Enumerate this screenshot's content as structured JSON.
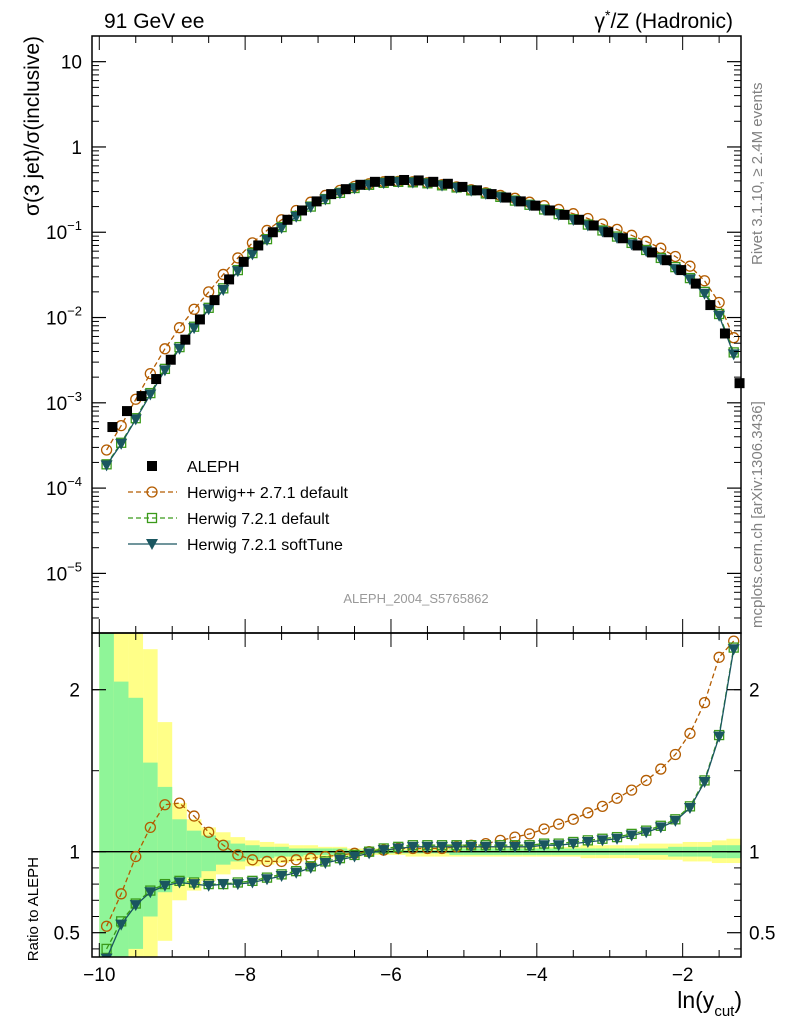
{
  "header": {
    "left": "91 GeV ee",
    "right_base": "γ",
    "right_sup": "*",
    "right_rest": "/Z (Hadronic)"
  },
  "side": {
    "rivet": "Rivet 3.1.10, ≥ 2.4M events",
    "mcplots": "mcplots.cern.ch [arXiv:1306.3436]"
  },
  "analysis_label": "ALEPH_2004_S5765862",
  "ylabel_main": "σ(3 jet)/σ(inclusive)",
  "ylabel_ratio": "Ratio to ALEPH",
  "xlabel_base": "ln(y",
  "xlabel_sub": "cut",
  "xlabel_close": ")",
  "main_ticks": [
    {
      "v": -5,
      "mant": "10",
      "exp": "−5"
    },
    {
      "v": -4,
      "mant": "10",
      "exp": "−4"
    },
    {
      "v": -3,
      "mant": "10",
      "exp": "−3"
    },
    {
      "v": -2,
      "mant": "10",
      "exp": "−2"
    },
    {
      "v": -1,
      "mant": "10",
      "exp": "−1"
    },
    {
      "v": 0,
      "mant": "1",
      "exp": ""
    },
    {
      "v": 1,
      "mant": "10",
      "exp": ""
    }
  ],
  "ratio_ticks": [
    {
      "v": 0.5,
      "label": "0.5"
    },
    {
      "v": 1,
      "label": "1"
    },
    {
      "v": 2,
      "label": "2"
    }
  ],
  "x_ticks": [
    {
      "v": -10,
      "label": "−10"
    },
    {
      "v": -8,
      "label": "−8"
    },
    {
      "v": -6,
      "label": "−6"
    },
    {
      "v": -4,
      "label": "−4"
    },
    {
      "v": -2,
      "label": "−2"
    }
  ],
  "chart_data": {
    "type": "line",
    "xlim": [
      -10.1,
      -1.2
    ],
    "ylim_main": [
      2e-06,
      20
    ],
    "yscale_main": "log",
    "ylim_ratio": [
      0.35,
      2.35
    ],
    "legend_position": "lower-left",
    "colors": {
      "data": "#000000",
      "herwigpp": "#b35c00",
      "h721": "#3a9a1a",
      "soft": "#1a5660",
      "band_inner": "#8ff598",
      "band_outer": "#ffff88"
    },
    "x": [
      -9.9,
      -9.7,
      -9.5,
      -9.3,
      -9.1,
      -8.9,
      -8.7,
      -8.5,
      -8.3,
      -8.1,
      -7.9,
      -7.7,
      -7.5,
      -7.3,
      -7.1,
      -6.9,
      -6.7,
      -6.5,
      -6.3,
      -6.1,
      -5.9,
      -5.7,
      -5.5,
      -5.3,
      -5.1,
      -4.9,
      -4.7,
      -4.5,
      -4.3,
      -4.1,
      -3.9,
      -3.7,
      -3.5,
      -3.3,
      -3.1,
      -2.9,
      -2.7,
      -2.5,
      -2.3,
      -2.1,
      -1.9,
      -1.7,
      -1.5,
      -1.3
    ],
    "series": [
      {
        "name": "ALEPH",
        "values": [
          0.00052,
          0.0008,
          0.0012,
          0.0019,
          0.0032,
          0.0055,
          0.0095,
          0.016,
          0.028,
          0.045,
          0.07,
          0.1,
          0.14,
          0.18,
          0.23,
          0.28,
          0.32,
          0.36,
          0.39,
          0.4,
          0.41,
          0.405,
          0.39,
          0.37,
          0.34,
          0.31,
          0.28,
          0.255,
          0.23,
          0.205,
          0.18,
          0.16,
          0.14,
          0.12,
          0.1,
          0.085,
          0.07,
          0.058,
          0.047,
          0.036,
          0.025,
          0.014,
          0.0065,
          0.0017
        ]
      },
      {
        "name": "Herwig++ 2.7.1 default",
        "values": [
          0.00028,
          0.00054,
          0.0011,
          0.0022,
          0.0043,
          0.0076,
          0.0125,
          0.02,
          0.032,
          0.05,
          0.075,
          0.105,
          0.14,
          0.18,
          0.225,
          0.27,
          0.31,
          0.345,
          0.37,
          0.39,
          0.395,
          0.39,
          0.38,
          0.36,
          0.34,
          0.315,
          0.29,
          0.27,
          0.25,
          0.225,
          0.205,
          0.185,
          0.165,
          0.145,
          0.125,
          0.108,
          0.092,
          0.078,
          0.065,
          0.052,
          0.04,
          0.027,
          0.015,
          0.0058
        ]
      },
      {
        "name": "Herwig 7.2.1 default",
        "values": [
          0.00019,
          0.00034,
          0.00066,
          0.0013,
          0.0025,
          0.0045,
          0.0078,
          0.013,
          0.022,
          0.036,
          0.057,
          0.083,
          0.115,
          0.155,
          0.2,
          0.245,
          0.29,
          0.33,
          0.36,
          0.38,
          0.39,
          0.385,
          0.375,
          0.355,
          0.335,
          0.31,
          0.285,
          0.26,
          0.235,
          0.21,
          0.185,
          0.163,
          0.142,
          0.123,
          0.105,
          0.089,
          0.075,
          0.062,
          0.05,
          0.039,
          0.029,
          0.02,
          0.011,
          0.0039
        ]
      },
      {
        "name": "Herwig 7.2.1 softTune",
        "values": [
          0.000185,
          0.00033,
          0.00064,
          0.00125,
          0.0024,
          0.0043,
          0.0075,
          0.0125,
          0.021,
          0.035,
          0.055,
          0.081,
          0.112,
          0.152,
          0.197,
          0.242,
          0.287,
          0.327,
          0.357,
          0.377,
          0.387,
          0.382,
          0.372,
          0.352,
          0.332,
          0.307,
          0.282,
          0.257,
          0.232,
          0.207,
          0.182,
          0.16,
          0.139,
          0.12,
          0.102,
          0.086,
          0.072,
          0.06,
          0.048,
          0.037,
          0.028,
          0.019,
          0.0105,
          0.0037
        ]
      }
    ],
    "ratio": {
      "herwigpp": [
        0.54,
        0.74,
        0.97,
        1.15,
        1.29,
        1.3,
        1.22,
        1.12,
        1.04,
        0.98,
        0.95,
        0.94,
        0.94,
        0.95,
        0.96,
        0.97,
        0.98,
        0.99,
        1.0,
        1.01,
        1.02,
        1.02,
        1.02,
        1.02,
        1.03,
        1.04,
        1.05,
        1.07,
        1.09,
        1.11,
        1.14,
        1.17,
        1.2,
        1.24,
        1.28,
        1.33,
        1.38,
        1.44,
        1.51,
        1.6,
        1.73,
        1.92,
        2.2,
        2.3
      ],
      "h721": [
        0.4,
        0.57,
        0.68,
        0.76,
        0.8,
        0.82,
        0.81,
        0.8,
        0.8,
        0.81,
        0.82,
        0.84,
        0.86,
        0.88,
        0.91,
        0.94,
        0.96,
        0.98,
        1.0,
        1.02,
        1.03,
        1.04,
        1.04,
        1.04,
        1.04,
        1.04,
        1.04,
        1.04,
        1.04,
        1.04,
        1.05,
        1.05,
        1.06,
        1.07,
        1.08,
        1.09,
        1.11,
        1.13,
        1.16,
        1.2,
        1.28,
        1.44,
        1.72,
        2.26
      ],
      "soft": [
        0.34,
        0.55,
        0.67,
        0.75,
        0.79,
        0.81,
        0.8,
        0.79,
        0.8,
        0.8,
        0.81,
        0.83,
        0.85,
        0.87,
        0.9,
        0.93,
        0.95,
        0.97,
        0.99,
        1.01,
        1.02,
        1.03,
        1.03,
        1.03,
        1.03,
        1.03,
        1.03,
        1.03,
        1.03,
        1.03,
        1.04,
        1.04,
        1.05,
        1.06,
        1.07,
        1.08,
        1.1,
        1.12,
        1.15,
        1.19,
        1.27,
        1.43,
        1.71,
        2.25
      ]
    },
    "band_inner": {
      "lo": [
        0.3,
        0.35,
        0.4,
        0.6,
        0.75,
        0.8,
        0.84,
        0.88,
        0.92,
        0.94,
        0.95,
        0.96,
        0.97,
        0.97,
        0.98,
        0.98,
        0.98,
        0.99,
        0.99,
        0.99,
        0.99,
        0.99,
        0.99,
        0.99,
        0.98,
        0.98,
        0.98,
        0.98,
        0.98,
        0.98,
        0.98,
        0.98,
        0.98,
        0.98,
        0.98,
        0.98,
        0.98,
        0.98,
        0.98,
        0.97,
        0.97,
        0.97,
        0.96,
        0.96
      ],
      "hi": [
        2.35,
        2.05,
        1.95,
        1.55,
        1.4,
        1.2,
        1.13,
        1.1,
        1.07,
        1.05,
        1.04,
        1.03,
        1.03,
        1.02,
        1.02,
        1.02,
        1.02,
        1.01,
        1.01,
        1.01,
        1.01,
        1.01,
        1.01,
        1.01,
        1.02,
        1.02,
        1.02,
        1.02,
        1.02,
        1.02,
        1.02,
        1.02,
        1.02,
        1.02,
        1.02,
        1.02,
        1.02,
        1.02,
        1.02,
        1.03,
        1.03,
        1.03,
        1.04,
        1.04
      ]
    },
    "band_outer": {
      "lo": [
        0.3,
        0.3,
        0.3,
        0.35,
        0.45,
        0.7,
        0.76,
        0.82,
        0.86,
        0.89,
        0.91,
        0.92,
        0.93,
        0.94,
        0.95,
        0.96,
        0.97,
        0.97,
        0.98,
        0.98,
        0.98,
        0.97,
        0.97,
        0.97,
        0.97,
        0.97,
        0.97,
        0.97,
        0.97,
        0.97,
        0.97,
        0.97,
        0.97,
        0.96,
        0.96,
        0.96,
        0.96,
        0.95,
        0.95,
        0.95,
        0.94,
        0.94,
        0.93,
        0.93
      ],
      "hi": [
        2.35,
        2.35,
        2.35,
        2.25,
        1.8,
        1.3,
        1.2,
        1.15,
        1.12,
        1.09,
        1.07,
        1.06,
        1.05,
        1.04,
        1.04,
        1.03,
        1.03,
        1.02,
        1.02,
        1.02,
        1.02,
        1.02,
        1.03,
        1.03,
        1.03,
        1.03,
        1.03,
        1.03,
        1.03,
        1.03,
        1.03,
        1.03,
        1.03,
        1.04,
        1.04,
        1.04,
        1.04,
        1.05,
        1.05,
        1.05,
        1.06,
        1.06,
        1.07,
        1.08
      ]
    }
  }
}
